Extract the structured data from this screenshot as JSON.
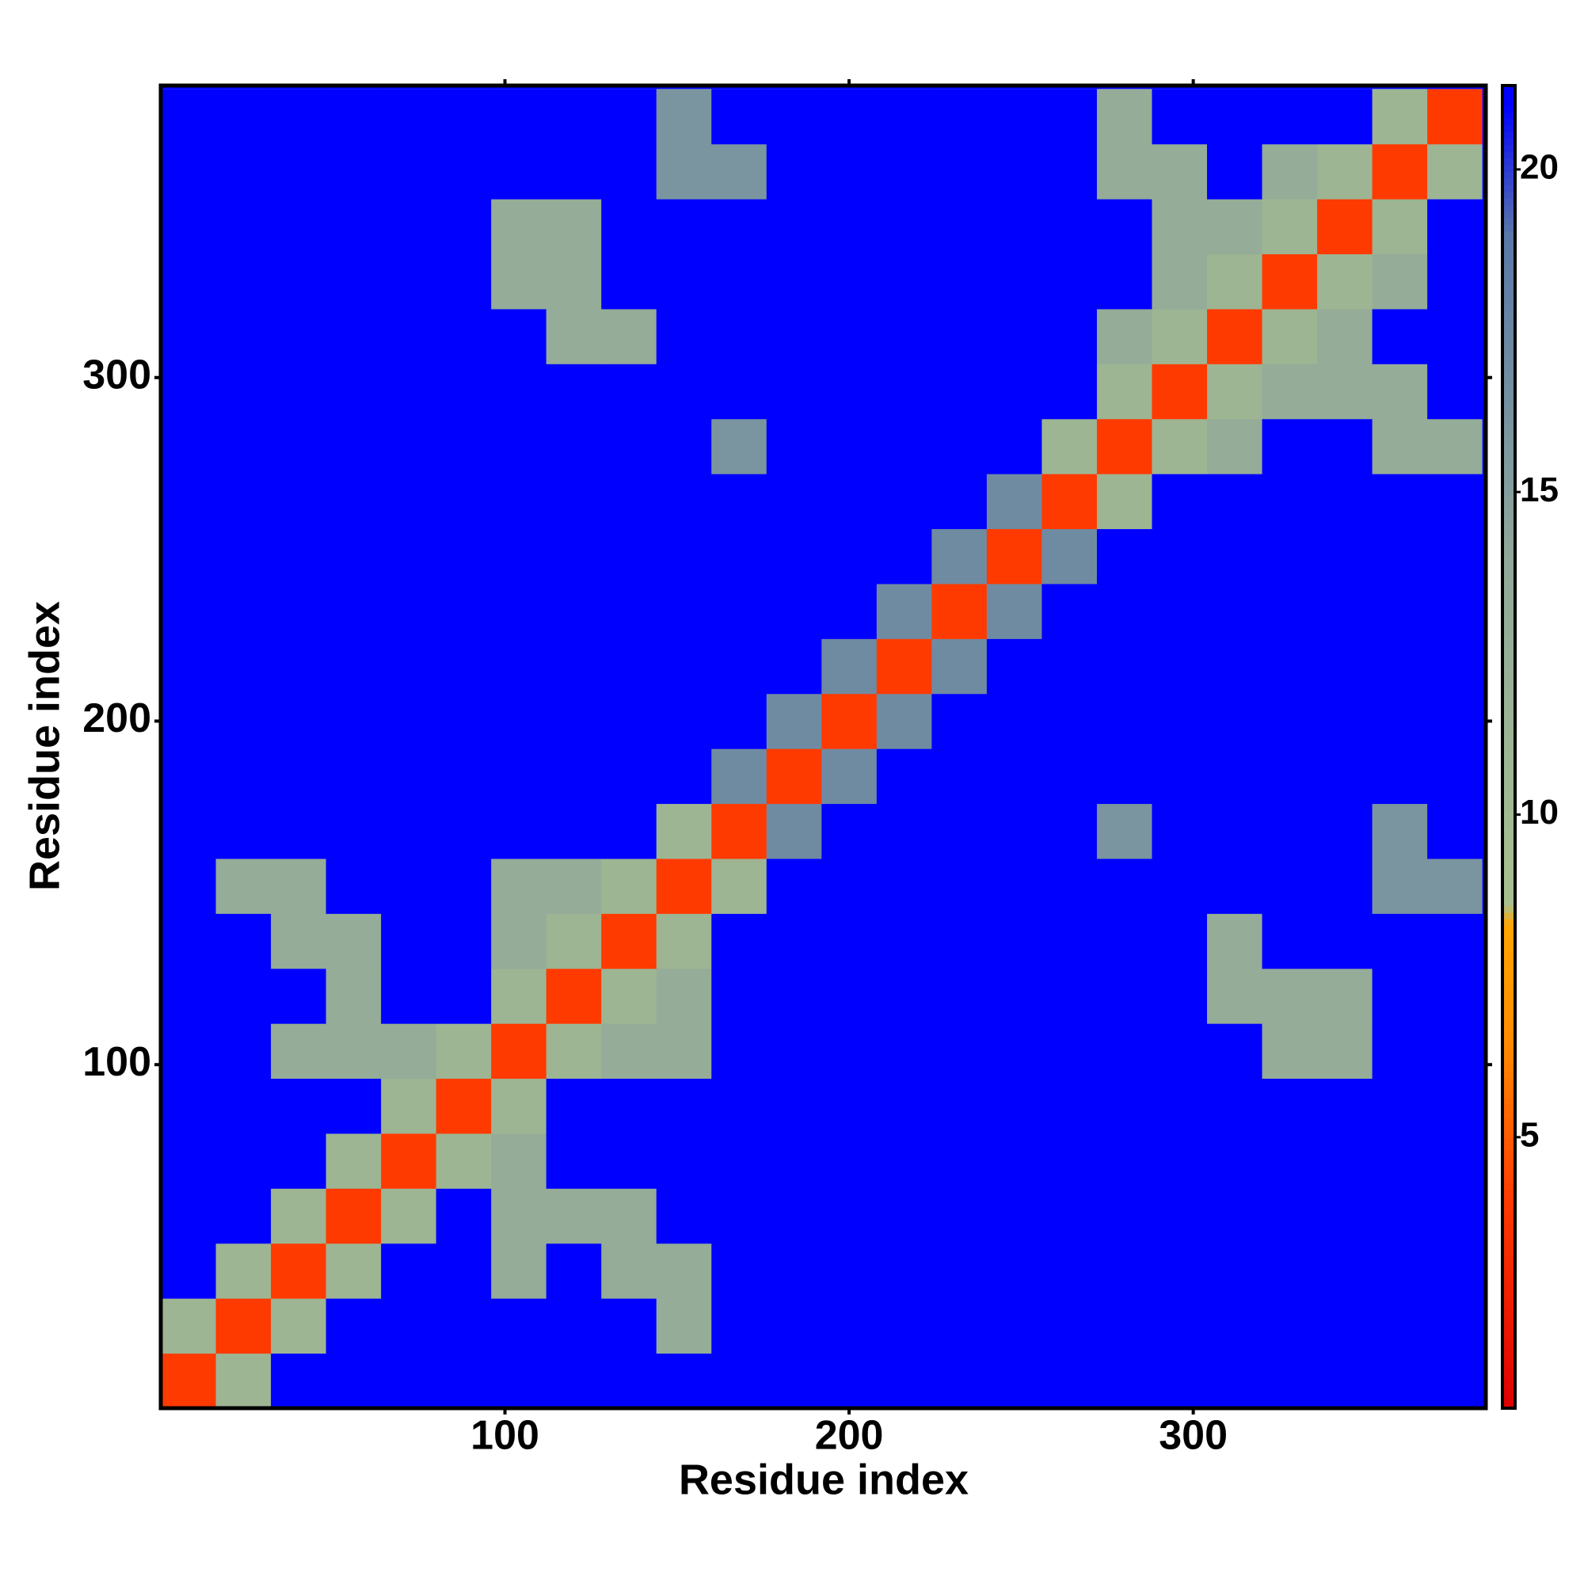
{
  "chart_data": {
    "type": "heatmap",
    "xlabel": "Residue index",
    "ylabel": "Residue index",
    "xlim": [
      0,
      385
    ],
    "ylim": [
      0,
      385
    ],
    "xticks": [
      100,
      200,
      300
    ],
    "yticks": [
      100,
      200,
      300
    ],
    "xbins": [
      0,
      16,
      32,
      48,
      64,
      80,
      96,
      112,
      128,
      144,
      160,
      176,
      192,
      208,
      224,
      240,
      256,
      272,
      288,
      304,
      320,
      336,
      352,
      368,
      384
    ],
    "ybins": [
      0,
      16,
      32,
      48,
      64,
      80,
      96,
      112,
      128,
      144,
      160,
      176,
      192,
      208,
      224,
      240,
      256,
      272,
      288,
      304,
      320,
      336,
      352,
      368,
      384
    ],
    "zlim": [
      0.8,
      21.3
    ],
    "zticks": [
      5,
      10,
      15,
      20
    ],
    "colorscale": [
      [
        0.8,
        "#e00000"
      ],
      [
        4,
        "#ff3a00"
      ],
      [
        6.5,
        "#ff8c00"
      ],
      [
        8.3,
        "#ffa500"
      ],
      [
        8.6,
        "#a8c08e"
      ],
      [
        14,
        "#8fa89a"
      ],
      [
        19,
        "#5a78a8"
      ],
      [
        21,
        "#0000ff"
      ],
      [
        21.3,
        "#0000ff"
      ]
    ],
    "values": [
      [
        4,
        11,
        21,
        21,
        21,
        21,
        21,
        21,
        21,
        21,
        21,
        21,
        21,
        21,
        21,
        21,
        21,
        21,
        21,
        21,
        21,
        21,
        21,
        21
      ],
      [
        11,
        4,
        11,
        21,
        21,
        21,
        21,
        21,
        21,
        13,
        21,
        21,
        21,
        21,
        21,
        21,
        21,
        21,
        21,
        21,
        21,
        21,
        21,
        21
      ],
      [
        21,
        11,
        4,
        11,
        21,
        21,
        13,
        21,
        13,
        13,
        21,
        21,
        21,
        21,
        21,
        21,
        21,
        21,
        21,
        21,
        21,
        21,
        21,
        21
      ],
      [
        21,
        21,
        11,
        4,
        11,
        21,
        13,
        13,
        13,
        21,
        21,
        21,
        21,
        21,
        21,
        21,
        21,
        21,
        21,
        21,
        21,
        21,
        21,
        21
      ],
      [
        21,
        21,
        21,
        11,
        4,
        11,
        13,
        21,
        21,
        21,
        21,
        21,
        21,
        21,
        21,
        21,
        21,
        21,
        21,
        21,
        21,
        21,
        21,
        21
      ],
      [
        21,
        21,
        21,
        21,
        11,
        4,
        11,
        21,
        21,
        21,
        21,
        21,
        21,
        21,
        21,
        21,
        21,
        21,
        21,
        21,
        21,
        21,
        21,
        21
      ],
      [
        21,
        21,
        13,
        13,
        13,
        11,
        4,
        11,
        13,
        13,
        21,
        21,
        21,
        21,
        21,
        21,
        21,
        21,
        21,
        21,
        13,
        13,
        21,
        21
      ],
      [
        21,
        21,
        21,
        13,
        21,
        21,
        11,
        4,
        11,
        13,
        21,
        21,
        21,
        21,
        21,
        21,
        21,
        21,
        21,
        13,
        13,
        13,
        21,
        21
      ],
      [
        21,
        21,
        13,
        13,
        21,
        21,
        13,
        11,
        4,
        11,
        21,
        21,
        21,
        21,
        21,
        21,
        21,
        21,
        21,
        13,
        21,
        21,
        21,
        21
      ],
      [
        21,
        13,
        13,
        21,
        21,
        21,
        13,
        13,
        11,
        4,
        11,
        21,
        21,
        21,
        21,
        21,
        21,
        21,
        21,
        21,
        21,
        21,
        16,
        16
      ],
      [
        21,
        21,
        21,
        21,
        21,
        21,
        21,
        21,
        21,
        11,
        4,
        17,
        21,
        21,
        21,
        21,
        21,
        16,
        21,
        21,
        21,
        21,
        16,
        21
      ],
      [
        21,
        21,
        21,
        21,
        21,
        21,
        21,
        21,
        21,
        21,
        17,
        4,
        17,
        21,
        21,
        21,
        21,
        21,
        21,
        21,
        21,
        21,
        21,
        21
      ],
      [
        21,
        21,
        21,
        21,
        21,
        21,
        21,
        21,
        21,
        21,
        21,
        17,
        4,
        17,
        21,
        21,
        21,
        21,
        21,
        21,
        21,
        21,
        21,
        21
      ],
      [
        21,
        21,
        21,
        21,
        21,
        21,
        21,
        21,
        21,
        21,
        21,
        21,
        17,
        4,
        17,
        21,
        21,
        21,
        21,
        21,
        21,
        21,
        21,
        21
      ],
      [
        21,
        21,
        21,
        21,
        21,
        21,
        21,
        21,
        21,
        21,
        21,
        21,
        21,
        17,
        4,
        17,
        21,
        21,
        21,
        21,
        21,
        21,
        21,
        21
      ],
      [
        21,
        21,
        21,
        21,
        21,
        21,
        21,
        21,
        21,
        21,
        21,
        21,
        21,
        21,
        17,
        4,
        17,
        21,
        21,
        21,
        21,
        21,
        21,
        21
      ],
      [
        21,
        21,
        21,
        21,
        21,
        21,
        21,
        21,
        21,
        21,
        21,
        21,
        21,
        21,
        21,
        17,
        4,
        11,
        21,
        21,
        21,
        21,
        21,
        21
      ],
      [
        21,
        21,
        21,
        21,
        21,
        21,
        21,
        21,
        21,
        21,
        16,
        21,
        21,
        21,
        21,
        21,
        11,
        4,
        11,
        13,
        21,
        21,
        13,
        13
      ],
      [
        21,
        21,
        21,
        21,
        21,
        21,
        21,
        21,
        21,
        21,
        21,
        21,
        21,
        21,
        21,
        21,
        21,
        11,
        4,
        11,
        13,
        13,
        13,
        21
      ],
      [
        21,
        21,
        21,
        21,
        21,
        21,
        21,
        13,
        13,
        21,
        21,
        21,
        21,
        21,
        21,
        21,
        21,
        13,
        11,
        4,
        11,
        13,
        21,
        21
      ],
      [
        21,
        21,
        21,
        21,
        21,
        21,
        13,
        13,
        21,
        21,
        21,
        21,
        21,
        21,
        21,
        21,
        21,
        21,
        13,
        11,
        4,
        11,
        13,
        21
      ],
      [
        21,
        21,
        21,
        21,
        21,
        21,
        13,
        13,
        21,
        21,
        21,
        21,
        21,
        21,
        21,
        21,
        21,
        21,
        13,
        13,
        11,
        4,
        11,
        21
      ],
      [
        21,
        21,
        21,
        21,
        21,
        21,
        21,
        21,
        21,
        16,
        16,
        21,
        21,
        21,
        21,
        21,
        21,
        13,
        13,
        21,
        13,
        11,
        4,
        11
      ],
      [
        21,
        21,
        21,
        21,
        21,
        21,
        21,
        21,
        21,
        16,
        21,
        21,
        21,
        21,
        21,
        21,
        21,
        13,
        21,
        21,
        21,
        21,
        11,
        4
      ]
    ]
  }
}
